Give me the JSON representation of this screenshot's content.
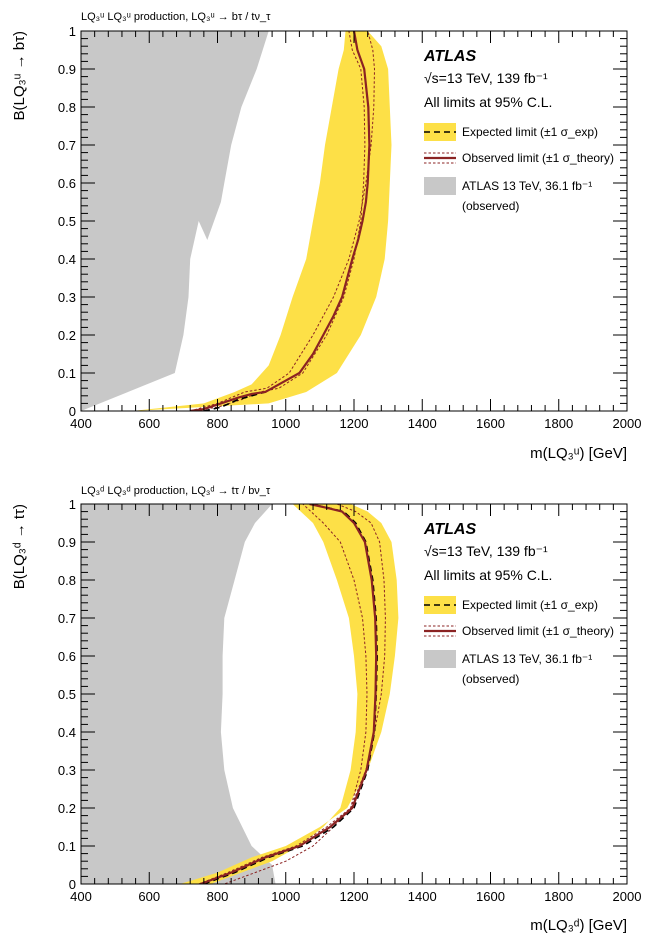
{
  "chart_data": [
    {
      "type": "area",
      "title": "LQ₃ᵘ LQ₃ᵘ production, LQ₃ᵘ → bτ / tν_τ",
      "xlabel": "m(LQ₃ᵘ) [GeV]",
      "ylabel": "B(LQ₃ᵘ → bτ)",
      "xlim": [
        400,
        2000
      ],
      "ylim": [
        0,
        1
      ],
      "xticks": [
        "400",
        "600",
        "800",
        "1000",
        "1200",
        "1400",
        "1600",
        "1800",
        "2000"
      ],
      "yticks": [
        "0",
        "0.1",
        "0.2",
        "0.3",
        "0.4",
        "0.5",
        "0.6",
        "0.7",
        "0.8",
        "0.9",
        "1"
      ],
      "atlas_label": "ATLAS",
      "info_lines": [
        "√s=13 TeV, 139 fb⁻¹",
        "All limits at 95% C.L."
      ],
      "legend": [
        {
          "label": "Expected limit (±1 σ_exp)"
        },
        {
          "label": "Observed limit (±1 σ_theory)"
        },
        {
          "label": "ATLAS 13 TeV, 36.1 fb⁻¹"
        },
        {
          "label": "(observed)"
        }
      ],
      "series": [
        {
          "role": "previous_exclusion",
          "x": [
            400,
            400,
            950,
            915,
            870,
            840,
            820,
            810,
            790,
            770,
            745,
            720,
            715,
            700,
            675,
            400
          ],
          "y": [
            0,
            1,
            1,
            0.9,
            0.8,
            0.7,
            0.6,
            0.55,
            0.5,
            0.45,
            0.5,
            0.4,
            0.3,
            0.2,
            0.1,
            0
          ]
        },
        {
          "role": "expected_band",
          "x": [
            550,
            950,
            1060,
            1150,
            1220,
            1265,
            1290,
            1300,
            1305,
            1310,
            1305,
            1300,
            1280,
            1240,
            1175,
            1170,
            1155,
            1135,
            1115,
            1100,
            1080,
            1060,
            1020,
            985,
            950,
            900,
            850,
            760
          ],
          "y": [
            0,
            0.02,
            0.05,
            0.1,
            0.2,
            0.3,
            0.4,
            0.5,
            0.6,
            0.7,
            0.8,
            0.9,
            0.96,
            1,
            1,
            0.95,
            0.9,
            0.8,
            0.7,
            0.6,
            0.5,
            0.4,
            0.3,
            0.2,
            0.12,
            0.07,
            0.05,
            0.02
          ]
        },
        {
          "role": "observed_theory_band",
          "x": [
            720,
            800,
            880,
            945,
            1010,
            1080,
            1140,
            1185,
            1215,
            1235,
            1250,
            1258,
            1260,
            1255,
            1240,
            1215,
            1185,
            1195,
            1220,
            1230,
            1232,
            1228,
            1220,
            1200,
            1170,
            1120,
            1050,
            980,
            925,
            870,
            800,
            720
          ],
          "y": [
            0,
            0.02,
            0.05,
            0.06,
            0.1,
            0.2,
            0.3,
            0.4,
            0.5,
            0.6,
            0.7,
            0.8,
            0.9,
            0.95,
            1,
            1,
            1,
            0.95,
            0.9,
            0.8,
            0.7,
            0.6,
            0.5,
            0.4,
            0.3,
            0.2,
            0.1,
            0.06,
            0.05,
            0.03,
            0.01,
            0
          ]
        },
        {
          "name": "Expected limit",
          "x": [
            760,
            810,
            860,
            900,
            940,
            960,
            1000,
            1040,
            1080,
            1110,
            1140,
            1165,
            1180,
            1195,
            1212,
            1225,
            1235,
            1240,
            1245,
            1242,
            1230,
            1210,
            1200
          ],
          "y": [
            0,
            0.01,
            0.03,
            0.04,
            0.05,
            0.06,
            0.08,
            0.1,
            0.15,
            0.2,
            0.25,
            0.3,
            0.35,
            0.4,
            0.45,
            0.5,
            0.55,
            0.6,
            0.7,
            0.8,
            0.9,
            0.95,
            1
          ]
        },
        {
          "name": "Observed limit",
          "x": [
            720,
            760,
            810,
            860,
            900,
            940,
            960,
            1000,
            1040,
            1080,
            1110,
            1140,
            1165,
            1180,
            1195,
            1212,
            1225,
            1235,
            1240,
            1245,
            1242,
            1230,
            1210,
            1200
          ],
          "y": [
            0,
            0.005,
            0.02,
            0.035,
            0.045,
            0.05,
            0.06,
            0.08,
            0.1,
            0.15,
            0.2,
            0.25,
            0.3,
            0.35,
            0.4,
            0.45,
            0.5,
            0.55,
            0.6,
            0.7,
            0.8,
            0.9,
            0.95,
            1
          ]
        }
      ]
    },
    {
      "type": "area",
      "title": "LQ₃ᵈ LQ₃ᵈ production, LQ₃ᵈ → tτ / bν_τ",
      "xlabel": "m(LQ₃ᵈ) [GeV]",
      "ylabel": "B(LQ₃ᵈ → tτ)",
      "xlim": [
        400,
        2000
      ],
      "ylim": [
        0,
        1
      ],
      "xticks": [
        "400",
        "600",
        "800",
        "1000",
        "1200",
        "1400",
        "1600",
        "1800",
        "2000"
      ],
      "yticks": [
        "0",
        "0.1",
        "0.2",
        "0.3",
        "0.4",
        "0.5",
        "0.6",
        "0.7",
        "0.8",
        "0.9",
        "1"
      ],
      "atlas_label": "ATLAS",
      "info_lines": [
        "√s=13 TeV, 139 fb⁻¹",
        "All limits at 95% C.L."
      ],
      "legend": [
        {
          "label": "Expected limit (±1 σ_exp)"
        },
        {
          "label": "Observed limit (±1 σ_theory)"
        },
        {
          "label": "ATLAS 13 TeV, 36.1 fb⁻¹"
        },
        {
          "label": "(observed)"
        }
      ],
      "series": [
        {
          "role": "previous_exclusion",
          "x": [
            400,
            400,
            960,
            910,
            880,
            850,
            820,
            815,
            815,
            815,
            810,
            820,
            845,
            900,
            960,
            970,
            400
          ],
          "y": [
            0,
            1,
            1,
            0.95,
            0.9,
            0.8,
            0.7,
            0.6,
            0.52,
            0.5,
            0.4,
            0.3,
            0.2,
            0.1,
            0.05,
            0,
            0
          ]
        },
        {
          "role": "expected_band",
          "x": [
            690,
            800,
            900,
            1000,
            1100,
            1180,
            1240,
            1280,
            1305,
            1320,
            1330,
            1325,
            1310,
            1280,
            1240,
            1190,
            1100,
            1020,
            1080,
            1110,
            1150,
            1185,
            1200,
            1210,
            1205,
            1190,
            1160,
            1110,
            1040,
            960,
            870,
            780
          ],
          "y": [
            0,
            0.03,
            0.07,
            0.1,
            0.15,
            0.2,
            0.3,
            0.4,
            0.5,
            0.6,
            0.7,
            0.8,
            0.9,
            0.95,
            0.98,
            1,
            1,
            1,
            0.95,
            0.9,
            0.8,
            0.7,
            0.6,
            0.5,
            0.4,
            0.3,
            0.2,
            0.15,
            0.1,
            0.06,
            0.03,
            0
          ]
        },
        {
          "role": "observed_theory_band",
          "x": [
            745,
            830,
            930,
            1030,
            1120,
            1190,
            1235,
            1260,
            1280,
            1290,
            1292,
            1288,
            1275,
            1250,
            1205,
            1150,
            1090,
            1050,
            1110,
            1160,
            1200,
            1225,
            1235,
            1238,
            1235,
            1220,
            1190,
            1140,
            1080,
            1000,
            910,
            820
          ],
          "y": [
            0,
            0.03,
            0.07,
            0.1,
            0.15,
            0.2,
            0.3,
            0.4,
            0.5,
            0.6,
            0.7,
            0.8,
            0.9,
            0.95,
            0.98,
            1,
            1,
            1,
            0.95,
            0.9,
            0.8,
            0.7,
            0.6,
            0.5,
            0.4,
            0.3,
            0.2,
            0.15,
            0.1,
            0.06,
            0.03,
            0
          ]
        },
        {
          "name": "Expected limit",
          "x": [
            760,
            850,
            950,
            1050,
            1140,
            1200,
            1240,
            1260,
            1265,
            1268,
            1265,
            1255,
            1235,
            1205,
            1170,
            1125,
            1070
          ],
          "y": [
            0,
            0.03,
            0.07,
            0.1,
            0.15,
            0.2,
            0.3,
            0.4,
            0.5,
            0.6,
            0.7,
            0.8,
            0.9,
            0.95,
            0.98,
            0.99,
            1
          ]
        },
        {
          "name": "Observed limit",
          "x": [
            750,
            840,
            940,
            1040,
            1130,
            1195,
            1237,
            1258,
            1263,
            1265,
            1262,
            1252,
            1232,
            1200,
            1165,
            1120,
            1070
          ],
          "y": [
            0,
            0.03,
            0.07,
            0.1,
            0.15,
            0.2,
            0.3,
            0.4,
            0.5,
            0.6,
            0.7,
            0.8,
            0.9,
            0.95,
            0.98,
            0.99,
            1
          ]
        }
      ]
    }
  ],
  "colors": {
    "previous_exclusion": "#c8c8c8",
    "expected_band": "#fde047",
    "expected_line": "#000000",
    "observed_line": "#8b2323"
  }
}
